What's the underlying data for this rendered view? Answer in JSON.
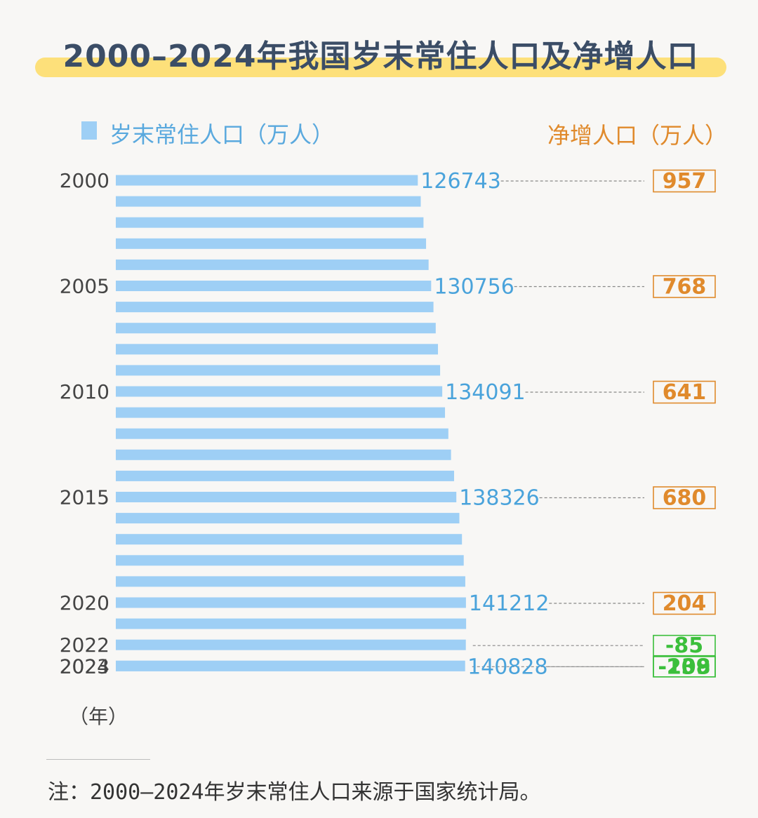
{
  "title": "2000–2024年我国岁末常住人口及净增人口",
  "legend": {
    "population_label": "岁末常住人口（万人）",
    "net_label": "净增人口（万人）",
    "population_color": "#9ecff5",
    "net_positive_color": "#e08a2c",
    "net_negative_color": "#3bbf3b"
  },
  "unit_label": "（年）",
  "footnote": "注：2000–2024年岁末常住人口来源于国家统计局。",
  "chart_data": {
    "type": "bar",
    "orientation": "horizontal",
    "categories": [
      "2000",
      "2001",
      "2002",
      "2003",
      "2004",
      "2005",
      "2006",
      "2007",
      "2008",
      "2009",
      "2010",
      "2011",
      "2012",
      "2013",
      "2014",
      "2015",
      "2016",
      "2017",
      "2018",
      "2019",
      "2020",
      "2021",
      "2022",
      "2023",
      "2024"
    ],
    "series": [
      {
        "name": "岁末常住人口（万人）",
        "values": [
          126743,
          127627,
          128453,
          129227,
          129988,
          130756,
          131448,
          132129,
          132802,
          133450,
          134091,
          134916,
          135922,
          136726,
          137646,
          138326,
          139232,
          140011,
          140541,
          141008,
          141212,
          141260,
          141175,
          140967,
          140828
        ]
      }
    ],
    "tick_labels": [
      "2000",
      "",
      "",
      "",
      "",
      "2005",
      "",
      "",
      "",
      "",
      "2010",
      "",
      "",
      "",
      "",
      "2015",
      "",
      "",
      "",
      "",
      "2020",
      "",
      "2022",
      "2023",
      "2024"
    ],
    "value_labels": [
      "126743",
      "",
      "",
      "",
      "",
      "130756",
      "",
      "",
      "",
      "",
      "134091",
      "",
      "",
      "",
      "",
      "138326",
      "",
      "",
      "",
      "",
      "141212",
      "",
      "",
      "",
      "140828"
    ],
    "net_increase": [
      {
        "year": "2000",
        "value": 957,
        "label": "957"
      },
      {
        "year": "2005",
        "value": 768,
        "label": "768"
      },
      {
        "year": "2010",
        "value": 641,
        "label": "641"
      },
      {
        "year": "2015",
        "value": 680,
        "label": "680"
      },
      {
        "year": "2020",
        "value": 204,
        "label": "204"
      },
      {
        "year": "2022",
        "value": -85,
        "label": "-85"
      },
      {
        "year": "2023",
        "value": -208,
        "label": "-208"
      },
      {
        "year": "2024",
        "value": -139,
        "label": "-139"
      }
    ],
    "xlim": [
      36000,
      142500
    ],
    "grid": false,
    "legend_position": "top"
  }
}
